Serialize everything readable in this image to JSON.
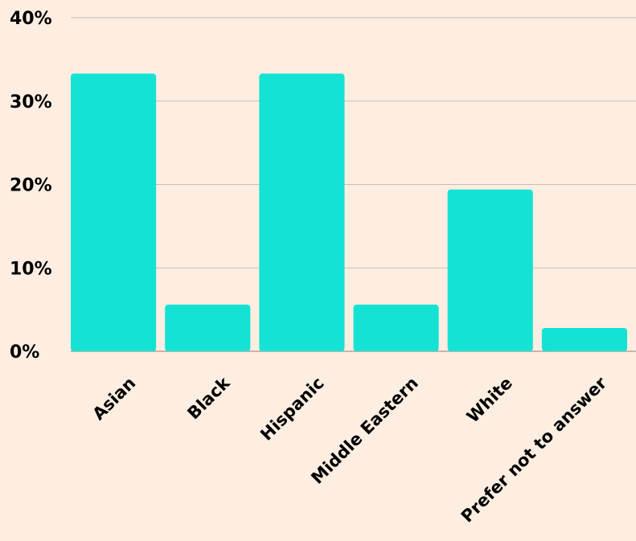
{
  "chart_data": {
    "type": "bar",
    "title": "",
    "xlabel": "",
    "ylabel": "",
    "categories": [
      "Asian",
      "Black",
      "Hispanic",
      "Middle Eastern",
      "White",
      "Prefer not to answer"
    ],
    "values": [
      33.3,
      5.6,
      33.3,
      5.6,
      19.4,
      2.8
    ],
    "ylim": [
      0,
      40
    ],
    "yticks": [
      0,
      10,
      20,
      30,
      40
    ],
    "ytick_labels": [
      "0%",
      "10%",
      "20%",
      "30%",
      "40%"
    ],
    "grid": true,
    "legend": "none",
    "colors": {
      "bar": "#14e3d4",
      "background": "#fdeee1",
      "gridline": "#c9bcb2",
      "text": "#000000"
    }
  }
}
